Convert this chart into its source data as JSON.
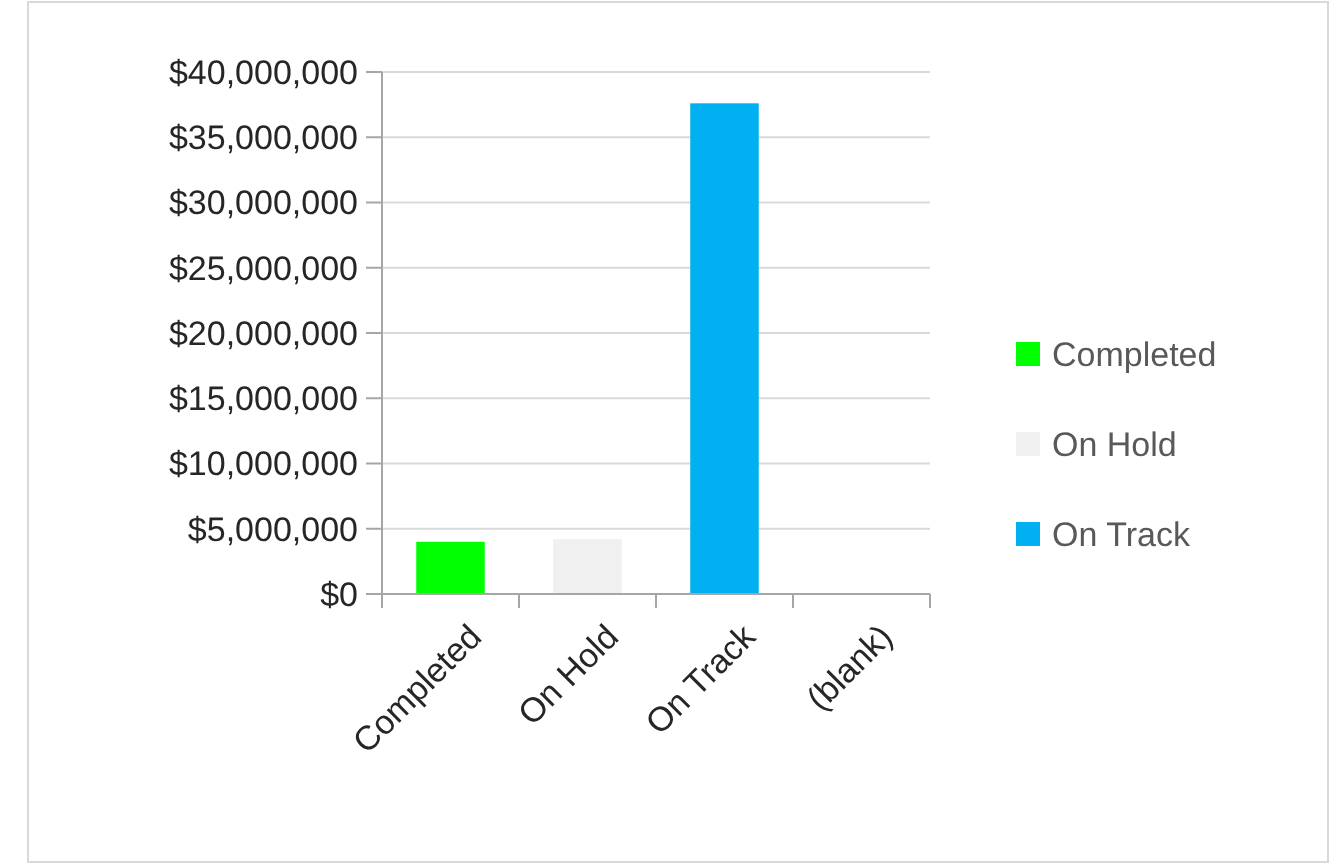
{
  "chart_data": {
    "type": "bar",
    "categories": [
      "Completed",
      "On Hold",
      "On Track",
      "(blank)"
    ],
    "series": [
      {
        "name": "Completed",
        "color": "#00ff00",
        "values": [
          4000000,
          null,
          null,
          null
        ]
      },
      {
        "name": "On Hold",
        "color": "#f0f0f0",
        "values": [
          null,
          4200000,
          null,
          null
        ]
      },
      {
        "name": "On Track",
        "color": "#00b0f0",
        "values": [
          null,
          null,
          37600000,
          null
        ]
      }
    ],
    "ylim": [
      0,
      40000000
    ],
    "yticks": [
      {
        "value": 0,
        "label": "$0"
      },
      {
        "value": 5000000,
        "label": "$5,000,000"
      },
      {
        "value": 10000000,
        "label": "$10,000,000"
      },
      {
        "value": 15000000,
        "label": "$15,000,000"
      },
      {
        "value": 20000000,
        "label": "$20,000,000"
      },
      {
        "value": 25000000,
        "label": "$25,000,000"
      },
      {
        "value": 30000000,
        "label": "$30,000,000"
      },
      {
        "value": 35000000,
        "label": "$35,000,000"
      },
      {
        "value": 40000000,
        "label": "$40,000,000"
      }
    ],
    "grid": "y",
    "legend": "right"
  }
}
